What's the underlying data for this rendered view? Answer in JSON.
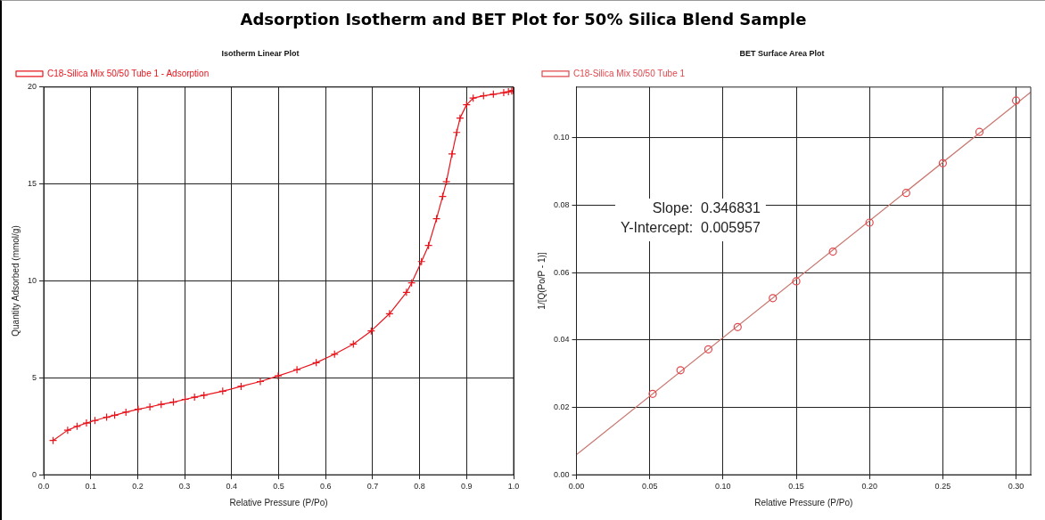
{
  "chart_data": [
    {
      "type": "other",
      "title": "Adsorption Isotherm and BET Plot for 50% Silica Blend Sample"
    },
    {
      "type": "line",
      "title": "Isotherm Linear Plot",
      "xlabel": "Relative Pressure (P/Po)",
      "ylabel": "Quantity Adsorbed (mmol/g)",
      "xlim": [
        0,
        1
      ],
      "ylim": [
        0,
        20
      ],
      "xticks": [
        {
          "value": 0,
          "label": "0.0"
        },
        0.1,
        0.2,
        0.3,
        0.4,
        0.5,
        0.6,
        0.7,
        0.8,
        0.9,
        {
          "value": 1,
          "label": "1.0"
        }
      ],
      "yticks": [
        0,
        5,
        10,
        15,
        20
      ],
      "grid": true,
      "legend": "top left",
      "marker": "cross",
      "series": [
        {
          "name": "C18-Silica Mix 50/50 Tube 1 - Adsorption",
          "color": "#e8141c",
          "x": [
            0.02,
            0.051,
            0.071,
            0.091,
            0.109,
            0.134,
            0.151,
            0.175,
            0.201,
            0.226,
            0.25,
            0.276,
            0.301,
            0.321,
            0.341,
            0.381,
            0.42,
            0.461,
            0.499,
            0.539,
            0.58,
            0.619,
            0.659,
            0.697,
            0.736,
            0.772,
            0.783,
            0.804,
            0.819,
            0.836,
            0.849,
            0.857,
            0.869,
            0.879,
            0.886,
            0.9,
            0.914,
            0.936,
            0.957,
            0.979,
            0.989,
            0.996,
            0.999
          ],
          "values": [
            1.77,
            2.3,
            2.5,
            2.67,
            2.8,
            2.97,
            3.07,
            3.23,
            3.38,
            3.5,
            3.63,
            3.75,
            3.89,
            4.0,
            4.1,
            4.31,
            4.56,
            4.81,
            5.1,
            5.42,
            5.78,
            6.22,
            6.74,
            7.42,
            8.31,
            9.41,
            9.9,
            11.0,
            11.83,
            13.21,
            14.36,
            15.12,
            16.55,
            17.66,
            18.4,
            19.09,
            19.43,
            19.55,
            19.63,
            19.71,
            19.76,
            19.8,
            19.83
          ]
        }
      ]
    },
    {
      "type": "scatter",
      "title": "BET Surface Area Plot",
      "xlabel": "Relative Pressure (P/Po)",
      "ylabel": "1/[Q(Po/P - 1)]",
      "xlim": [
        0,
        0.31
      ],
      "ylim": [
        0,
        0.115
      ],
      "xticks": [
        {
          "value": 0,
          "label": "0.00"
        },
        0.05,
        {
          "value": 0.1,
          "label": "0.10"
        },
        0.15,
        {
          "value": 0.2,
          "label": "0.20"
        },
        0.25,
        {
          "value": 0.3,
          "label": "0.30"
        }
      ],
      "yticks": [
        {
          "value": 0,
          "label": "0.00"
        },
        0.02,
        0.04,
        0.06,
        0.08,
        {
          "value": 0.1,
          "label": "0.10"
        }
      ],
      "grid": true,
      "legend": "top left",
      "marker": "circle",
      "annotations": [
        "Slope:  0.346831",
        "Y-Intercept:  0.005957"
      ],
      "series": [
        {
          "name": "C18-Silica Mix 50/50 Tube 1",
          "color": "#e0484c",
          "x": [
            0.052,
            0.071,
            0.09,
            0.11,
            0.134,
            0.15,
            0.175,
            0.2,
            0.225,
            0.25,
            0.275,
            0.3
          ],
          "values": [
            0.024,
            0.031,
            0.0372,
            0.0438,
            0.0524,
            0.0574,
            0.0662,
            0.0748,
            0.0836,
            0.0924,
            0.1017,
            0.111
          ]
        },
        {
          "type": "line",
          "marker": "none",
          "color": "#c8766e",
          "x": [
            0,
            0.31
          ],
          "values": [
            0.005957,
            0.1135
          ]
        }
      ]
    }
  ]
}
